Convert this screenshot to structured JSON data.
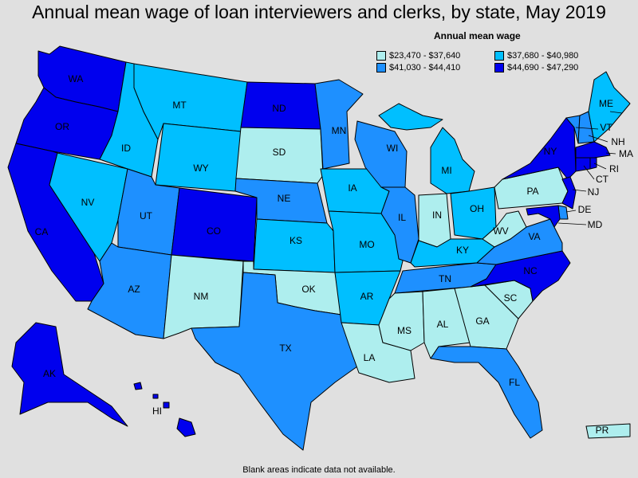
{
  "title": "Annual mean wage of loan interviewers and clerks, by state, May 2019",
  "legend": {
    "title": "Annual mean wage",
    "items": [
      {
        "label": "$23,470 - $37,640",
        "color": "#aeeeee"
      },
      {
        "label": "$37,680 - $40,980",
        "color": "#00bfff"
      },
      {
        "label": "$41,030 - $44,410",
        "color": "#1e90ff"
      },
      {
        "label": "$44,690 - $47,290",
        "color": "#0000ee"
      }
    ]
  },
  "footnote": "Blank areas indicate data not available.",
  "states": [
    {
      "code": "WA",
      "cls": 3
    },
    {
      "code": "OR",
      "cls": 3
    },
    {
      "code": "CA",
      "cls": 3
    },
    {
      "code": "NV",
      "cls": 1
    },
    {
      "code": "ID",
      "cls": 1
    },
    {
      "code": "MT",
      "cls": 1
    },
    {
      "code": "WY",
      "cls": 1
    },
    {
      "code": "UT",
      "cls": 2
    },
    {
      "code": "AZ",
      "cls": 2
    },
    {
      "code": "CO",
      "cls": 3
    },
    {
      "code": "NM",
      "cls": 0
    },
    {
      "code": "ND",
      "cls": 3
    },
    {
      "code": "SD",
      "cls": 0
    },
    {
      "code": "NE",
      "cls": 2
    },
    {
      "code": "KS",
      "cls": 1
    },
    {
      "code": "OK",
      "cls": 0
    },
    {
      "code": "TX",
      "cls": 2
    },
    {
      "code": "MN",
      "cls": 2
    },
    {
      "code": "IA",
      "cls": 1
    },
    {
      "code": "MO",
      "cls": 1
    },
    {
      "code": "AR",
      "cls": 1
    },
    {
      "code": "LA",
      "cls": 0
    },
    {
      "code": "WI",
      "cls": 2
    },
    {
      "code": "IL",
      "cls": 2
    },
    {
      "code": "MI",
      "cls": 1
    },
    {
      "code": "IN",
      "cls": 0
    },
    {
      "code": "OH",
      "cls": 1
    },
    {
      "code": "KY",
      "cls": 1
    },
    {
      "code": "TN",
      "cls": 2
    },
    {
      "code": "MS",
      "cls": 0
    },
    {
      "code": "AL",
      "cls": 0
    },
    {
      "code": "GA",
      "cls": 0
    },
    {
      "code": "FL",
      "cls": 2
    },
    {
      "code": "SC",
      "cls": 0
    },
    {
      "code": "NC",
      "cls": 3
    },
    {
      "code": "VA",
      "cls": 2
    },
    {
      "code": "WV",
      "cls": 0
    },
    {
      "code": "PA",
      "cls": 0
    },
    {
      "code": "NY",
      "cls": 3
    },
    {
      "code": "ME",
      "cls": 1
    },
    {
      "code": "VT",
      "cls": 2
    },
    {
      "code": "NH",
      "cls": 2
    },
    {
      "code": "MA",
      "cls": 3
    },
    {
      "code": "RI",
      "cls": 3
    },
    {
      "code": "CT",
      "cls": 3
    },
    {
      "code": "NJ",
      "cls": 3
    },
    {
      "code": "DE",
      "cls": 2
    },
    {
      "code": "MD",
      "cls": 3
    },
    {
      "code": "AK",
      "cls": 3
    },
    {
      "code": "HI",
      "cls": 3
    },
    {
      "code": "PR",
      "cls": 0
    }
  ]
}
